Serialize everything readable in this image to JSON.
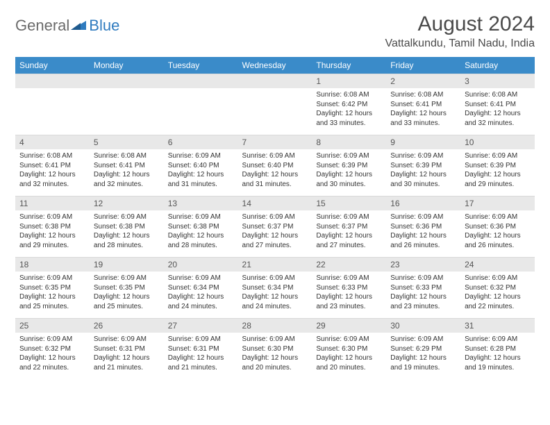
{
  "brand": {
    "part1": "General",
    "part2": "Blue"
  },
  "title": "August 2024",
  "location": "Vattalkundu, Tamil Nadu, India",
  "colors": {
    "header_bg": "#3a8bc9",
    "header_text": "#ffffff",
    "daynum_bg": "#e8e8e8",
    "text": "#333333",
    "brand_gray": "#6b6b6b",
    "brand_blue": "#2f7bbf"
  },
  "day_headers": [
    "Sunday",
    "Monday",
    "Tuesday",
    "Wednesday",
    "Thursday",
    "Friday",
    "Saturday"
  ],
  "weeks": [
    [
      null,
      null,
      null,
      null,
      {
        "n": "1",
        "sr": "6:08 AM",
        "ss": "6:42 PM",
        "dl": "12 hours and 33 minutes."
      },
      {
        "n": "2",
        "sr": "6:08 AM",
        "ss": "6:41 PM",
        "dl": "12 hours and 33 minutes."
      },
      {
        "n": "3",
        "sr": "6:08 AM",
        "ss": "6:41 PM",
        "dl": "12 hours and 32 minutes."
      }
    ],
    [
      {
        "n": "4",
        "sr": "6:08 AM",
        "ss": "6:41 PM",
        "dl": "12 hours and 32 minutes."
      },
      {
        "n": "5",
        "sr": "6:08 AM",
        "ss": "6:41 PM",
        "dl": "12 hours and 32 minutes."
      },
      {
        "n": "6",
        "sr": "6:09 AM",
        "ss": "6:40 PM",
        "dl": "12 hours and 31 minutes."
      },
      {
        "n": "7",
        "sr": "6:09 AM",
        "ss": "6:40 PM",
        "dl": "12 hours and 31 minutes."
      },
      {
        "n": "8",
        "sr": "6:09 AM",
        "ss": "6:39 PM",
        "dl": "12 hours and 30 minutes."
      },
      {
        "n": "9",
        "sr": "6:09 AM",
        "ss": "6:39 PM",
        "dl": "12 hours and 30 minutes."
      },
      {
        "n": "10",
        "sr": "6:09 AM",
        "ss": "6:39 PM",
        "dl": "12 hours and 29 minutes."
      }
    ],
    [
      {
        "n": "11",
        "sr": "6:09 AM",
        "ss": "6:38 PM",
        "dl": "12 hours and 29 minutes."
      },
      {
        "n": "12",
        "sr": "6:09 AM",
        "ss": "6:38 PM",
        "dl": "12 hours and 28 minutes."
      },
      {
        "n": "13",
        "sr": "6:09 AM",
        "ss": "6:38 PM",
        "dl": "12 hours and 28 minutes."
      },
      {
        "n": "14",
        "sr": "6:09 AM",
        "ss": "6:37 PM",
        "dl": "12 hours and 27 minutes."
      },
      {
        "n": "15",
        "sr": "6:09 AM",
        "ss": "6:37 PM",
        "dl": "12 hours and 27 minutes."
      },
      {
        "n": "16",
        "sr": "6:09 AM",
        "ss": "6:36 PM",
        "dl": "12 hours and 26 minutes."
      },
      {
        "n": "17",
        "sr": "6:09 AM",
        "ss": "6:36 PM",
        "dl": "12 hours and 26 minutes."
      }
    ],
    [
      {
        "n": "18",
        "sr": "6:09 AM",
        "ss": "6:35 PM",
        "dl": "12 hours and 25 minutes."
      },
      {
        "n": "19",
        "sr": "6:09 AM",
        "ss": "6:35 PM",
        "dl": "12 hours and 25 minutes."
      },
      {
        "n": "20",
        "sr": "6:09 AM",
        "ss": "6:34 PM",
        "dl": "12 hours and 24 minutes."
      },
      {
        "n": "21",
        "sr": "6:09 AM",
        "ss": "6:34 PM",
        "dl": "12 hours and 24 minutes."
      },
      {
        "n": "22",
        "sr": "6:09 AM",
        "ss": "6:33 PM",
        "dl": "12 hours and 23 minutes."
      },
      {
        "n": "23",
        "sr": "6:09 AM",
        "ss": "6:33 PM",
        "dl": "12 hours and 23 minutes."
      },
      {
        "n": "24",
        "sr": "6:09 AM",
        "ss": "6:32 PM",
        "dl": "12 hours and 22 minutes."
      }
    ],
    [
      {
        "n": "25",
        "sr": "6:09 AM",
        "ss": "6:32 PM",
        "dl": "12 hours and 22 minutes."
      },
      {
        "n": "26",
        "sr": "6:09 AM",
        "ss": "6:31 PM",
        "dl": "12 hours and 21 minutes."
      },
      {
        "n": "27",
        "sr": "6:09 AM",
        "ss": "6:31 PM",
        "dl": "12 hours and 21 minutes."
      },
      {
        "n": "28",
        "sr": "6:09 AM",
        "ss": "6:30 PM",
        "dl": "12 hours and 20 minutes."
      },
      {
        "n": "29",
        "sr": "6:09 AM",
        "ss": "6:30 PM",
        "dl": "12 hours and 20 minutes."
      },
      {
        "n": "30",
        "sr": "6:09 AM",
        "ss": "6:29 PM",
        "dl": "12 hours and 19 minutes."
      },
      {
        "n": "31",
        "sr": "6:09 AM",
        "ss": "6:28 PM",
        "dl": "12 hours and 19 minutes."
      }
    ]
  ],
  "labels": {
    "sunrise": "Sunrise:",
    "sunset": "Sunset:",
    "daylight": "Daylight:"
  }
}
